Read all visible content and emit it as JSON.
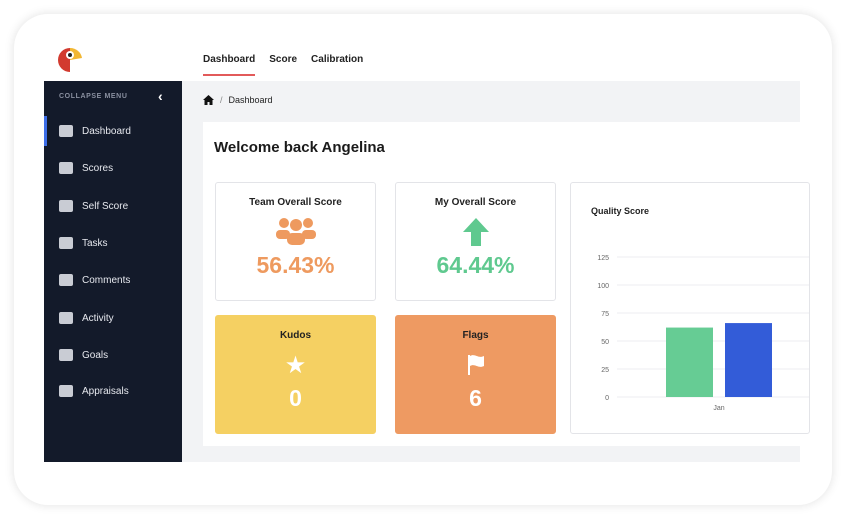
{
  "topnav": {
    "tabs": [
      "Dashboard",
      "Score",
      "Calibration"
    ]
  },
  "sidebar": {
    "collapse_label": "COLLAPSE MENU",
    "items": [
      {
        "label": "Dashboard"
      },
      {
        "label": "Scores"
      },
      {
        "label": "Self Score"
      },
      {
        "label": "Tasks"
      },
      {
        "label": "Comments"
      },
      {
        "label": "Activity"
      },
      {
        "label": "Goals"
      },
      {
        "label": "Appraisals"
      }
    ]
  },
  "breadcrumb": {
    "sep": "/",
    "current": "Dashboard"
  },
  "welcome": "Welcome back Angelina",
  "cards": {
    "team": {
      "title": "Team Overall Score",
      "value": "56.43%",
      "color": "#ee9a5f"
    },
    "my": {
      "title": "My Overall Score",
      "value": "64.44%",
      "color": "#5fc98f"
    },
    "kudos": {
      "title": "Kudos",
      "value": "0",
      "color": "#f5d062"
    },
    "flags": {
      "title": "Flags",
      "value": "6",
      "color": "#ee9a62"
    }
  },
  "chart_data": {
    "type": "bar",
    "title": "Quality Score",
    "categories": [
      "Jan"
    ],
    "series": [
      {
        "values": [
          62
        ],
        "color": "#66cc94"
      },
      {
        "values": [
          66
        ],
        "color": "#335cd8"
      }
    ],
    "ylim": [
      0,
      125
    ],
    "yticks": [
      0,
      25,
      50,
      75,
      100,
      125
    ],
    "grid": true
  }
}
